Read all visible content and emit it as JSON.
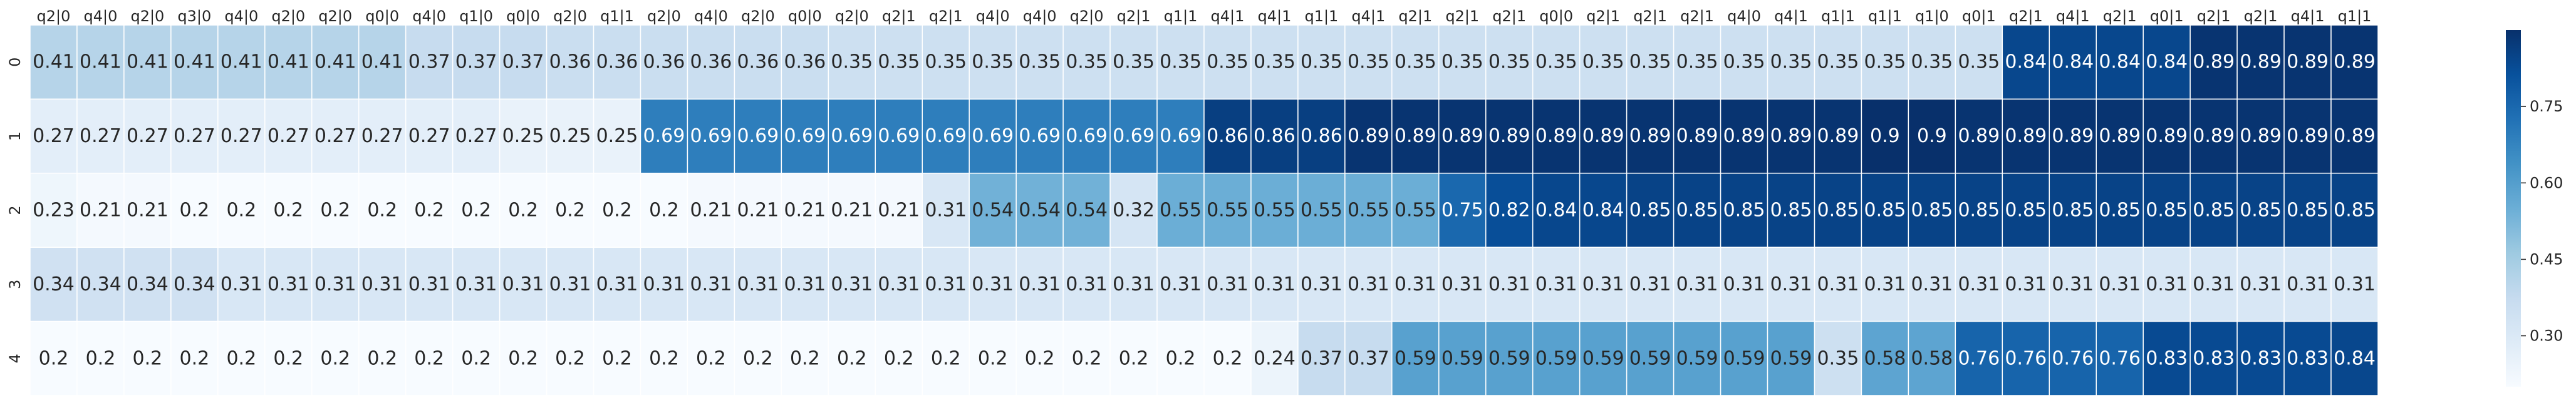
{
  "chart_data": {
    "type": "heatmap",
    "title": "",
    "xlabel": "",
    "ylabel": "",
    "x_tick_labels": [
      "q2|0",
      "q4|0",
      "q2|0",
      "q3|0",
      "q4|0",
      "q2|0",
      "q2|0",
      "q0|0",
      "q4|0",
      "q1|0",
      "q0|0",
      "q2|0",
      "q1|1",
      "q2|0",
      "q4|0",
      "q2|0",
      "q0|0",
      "q2|0",
      "q2|1",
      "q2|1",
      "q4|0",
      "q4|0",
      "q2|0",
      "q2|1",
      "q1|1",
      "q4|1",
      "q4|1",
      "q1|1",
      "q4|1",
      "q2|1",
      "q2|1",
      "q2|1",
      "q0|0",
      "q2|1",
      "q2|1",
      "q2|1",
      "q4|0",
      "q4|1",
      "q1|1",
      "q1|1",
      "q1|0",
      "q0|1",
      "q2|1",
      "q4|1",
      "q2|1",
      "q0|1",
      "q2|1",
      "q2|1",
      "q4|1",
      "q1|1"
    ],
    "y_tick_labels": [
      "0",
      "1",
      "2",
      "3",
      "4"
    ],
    "values": [
      [
        0.41,
        0.41,
        0.41,
        0.41,
        0.41,
        0.41,
        0.41,
        0.41,
        0.37,
        0.37,
        0.37,
        0.36,
        0.36,
        0.36,
        0.36,
        0.36,
        0.36,
        0.35,
        0.35,
        0.35,
        0.35,
        0.35,
        0.35,
        0.35,
        0.35,
        0.35,
        0.35,
        0.35,
        0.35,
        0.35,
        0.35,
        0.35,
        0.35,
        0.35,
        0.35,
        0.35,
        0.35,
        0.35,
        0.35,
        0.35,
        0.35,
        0.35,
        0.84,
        0.84,
        0.84,
        0.84,
        0.89,
        0.89,
        0.89,
        0.89
      ],
      [
        0.27,
        0.27,
        0.27,
        0.27,
        0.27,
        0.27,
        0.27,
        0.27,
        0.27,
        0.27,
        0.25,
        0.25,
        0.25,
        0.69,
        0.69,
        0.69,
        0.69,
        0.69,
        0.69,
        0.69,
        0.69,
        0.69,
        0.69,
        0.69,
        0.69,
        0.86,
        0.86,
        0.86,
        0.89,
        0.89,
        0.89,
        0.89,
        0.89,
        0.89,
        0.89,
        0.89,
        0.89,
        0.89,
        0.89,
        0.9,
        0.9,
        0.89,
        0.89,
        0.89,
        0.89,
        0.89,
        0.89,
        0.89,
        0.89,
        0.89
      ],
      [
        0.23,
        0.21,
        0.21,
        0.2,
        0.2,
        0.2,
        0.2,
        0.2,
        0.2,
        0.2,
        0.2,
        0.2,
        0.2,
        0.2,
        0.21,
        0.21,
        0.21,
        0.21,
        0.21,
        0.31,
        0.54,
        0.54,
        0.54,
        0.32,
        0.55,
        0.55,
        0.55,
        0.55,
        0.55,
        0.55,
        0.75,
        0.82,
        0.84,
        0.84,
        0.85,
        0.85,
        0.85,
        0.85,
        0.85,
        0.85,
        0.85,
        0.85,
        0.85,
        0.85,
        0.85,
        0.85,
        0.85,
        0.85,
        0.85,
        0.85
      ],
      [
        0.34,
        0.34,
        0.34,
        0.34,
        0.31,
        0.31,
        0.31,
        0.31,
        0.31,
        0.31,
        0.31,
        0.31,
        0.31,
        0.31,
        0.31,
        0.31,
        0.31,
        0.31,
        0.31,
        0.31,
        0.31,
        0.31,
        0.31,
        0.31,
        0.31,
        0.31,
        0.31,
        0.31,
        0.31,
        0.31,
        0.31,
        0.31,
        0.31,
        0.31,
        0.31,
        0.31,
        0.31,
        0.31,
        0.31,
        0.31,
        0.31,
        0.31,
        0.31,
        0.31,
        0.31,
        0.31,
        0.31,
        0.31,
        0.31,
        0.31
      ],
      [
        0.2,
        0.2,
        0.2,
        0.2,
        0.2,
        0.2,
        0.2,
        0.2,
        0.2,
        0.2,
        0.2,
        0.2,
        0.2,
        0.2,
        0.2,
        0.2,
        0.2,
        0.2,
        0.2,
        0.2,
        0.2,
        0.2,
        0.2,
        0.2,
        0.2,
        0.2,
        0.24,
        0.37,
        0.37,
        0.59,
        0.59,
        0.59,
        0.59,
        0.59,
        0.59,
        0.59,
        0.59,
        0.59,
        0.35,
        0.58,
        0.58,
        0.76,
        0.76,
        0.76,
        0.76,
        0.83,
        0.83,
        0.83,
        0.83,
        0.84
      ]
    ],
    "colorbar": {
      "colormap": "Blues",
      "vmin": 0.2,
      "vmax": 0.9,
      "ticks": [
        0.3,
        0.45,
        0.6,
        0.75
      ],
      "tick_labels": [
        "0.30",
        "0.45",
        "0.60",
        "0.75"
      ]
    },
    "annotations": "cell values printed in each cell",
    "grid": "white separators between cells",
    "legend": "colorbar right"
  }
}
